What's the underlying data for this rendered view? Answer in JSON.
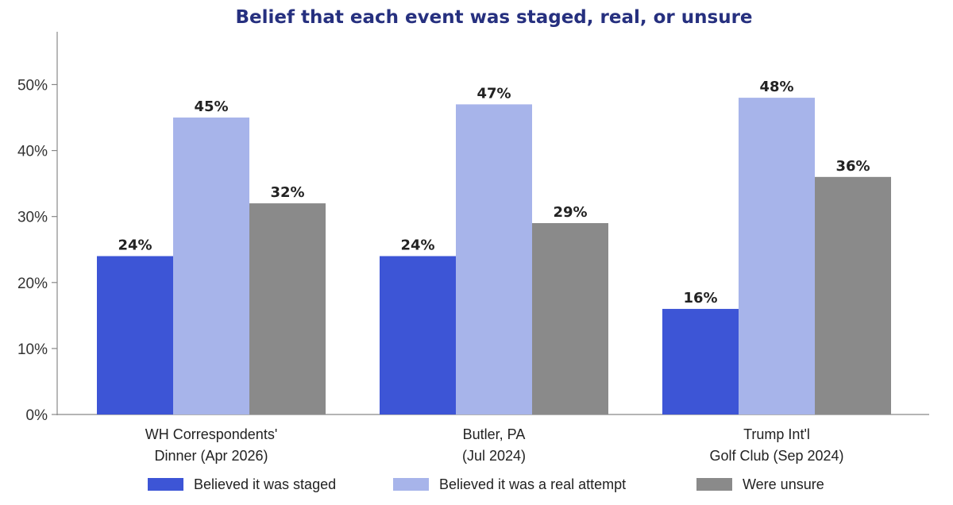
{
  "chart_data": {
    "type": "bar",
    "title": "Belief that each event was staged, real, or unsure",
    "title_color": "#26307f",
    "categories": [
      [
        "WH Correspondents'",
        "Dinner (Apr 2026)"
      ],
      [
        "Butler, PA",
        "(Jul 2024)"
      ],
      [
        "Trump Int'l",
        "Golf Club (Sep 2024)"
      ]
    ],
    "series": [
      {
        "name": "Believed it was staged",
        "color": "#3d55d6",
        "values": [
          24,
          24,
          16
        ]
      },
      {
        "name": "Believed it was a real attempt",
        "color": "#a7b4ea",
        "values": [
          45,
          47,
          48
        ]
      },
      {
        "name": "Were unsure",
        "color": "#8a8a8a",
        "values": [
          32,
          29,
          36
        ]
      }
    ],
    "value_suffix": "%",
    "ylim": [
      0,
      58
    ],
    "yticks": [
      0,
      10,
      20,
      30,
      40,
      50
    ],
    "ytick_labels": [
      "0%",
      "10%",
      "20%",
      "30%",
      "40%",
      "50%"
    ],
    "grid": false,
    "legend_position": "bottom",
    "xlabel": "",
    "ylabel": ""
  }
}
